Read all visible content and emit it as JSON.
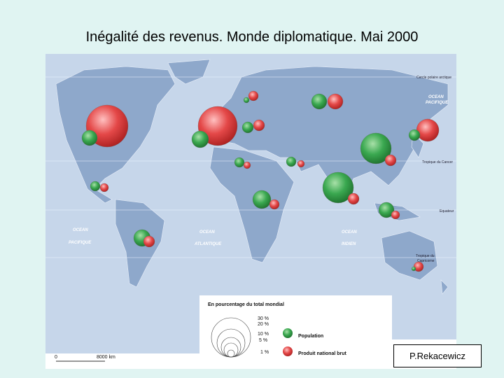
{
  "header": {
    "title": "Inégalité des revenus. Monde diplomatique. Mai 2000"
  },
  "map": {
    "labels": [
      "Cercle polaire arctique",
      "OCEAN",
      "PACIFIQUE",
      "Tropique du Cancer",
      "Equateur",
      "OCEAN",
      "PACIFIQUE",
      "OCEAN",
      "ATLANTIQUE",
      "OCEAN",
      "INDIEN",
      "Tropique du",
      "Capricorne"
    ]
  },
  "legend": {
    "title": "En pourcentage du total mondial",
    "scale_labels": [
      "30 %",
      "20 %",
      "10 %",
      "5 %",
      "1 %"
    ],
    "items": [
      "Population",
      "Produit national brut"
    ],
    "scalebar": [
      "0",
      "8000 km"
    ]
  },
  "credit": "P.Rekacewicz"
}
